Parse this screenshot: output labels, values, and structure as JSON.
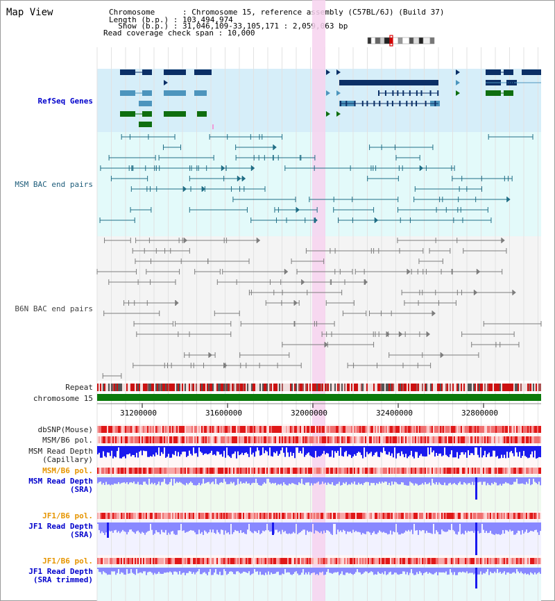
{
  "map": {
    "title": "Map View",
    "info_lines": [
      "Chromosome      : Chromosome 15, reference assembly (C57BL/6J) (Build 37)",
      "Length (b.p.) : 103,494,974",
      "  Show (b.p.) : 31,046,109-33,105,171 : 2,059,063 bp",
      "Read coverage check span : 10,000"
    ]
  },
  "tracks": {
    "refseq": "RefSeq Genes",
    "msm_bac": "MSM BAC end pairs",
    "b6n_bac": "B6N BAC end pairs",
    "repeat": "Repeat",
    "chromosome": "chromosome 15",
    "dbsnp": "dbSNP(Mouse)",
    "msm_b6_pol_1": "MSM/B6 pol.",
    "msm_depth_cap_1": "MSM Read Depth",
    "msm_depth_cap_2": "(Capillary)",
    "msm_b6_pol_2": "MSM/B6 pol.",
    "msm_depth_sra_1": "MSM Read Depth",
    "msm_depth_sra_2": "(SRA)",
    "jf1_b6_pol_1": "JF1/B6 pol.",
    "jf1_depth_sra_1": "JF1 Read Depth",
    "jf1_depth_sra_2": "(SRA)",
    "jf1_b6_pol_2": "JF1/B6 pol.",
    "jf1_depth_trim_1": "JF1 Read Depth",
    "jf1_depth_trim_2": "(SRA trimmed)"
  },
  "axis_ticks": [
    "31200000",
    "31600000",
    "32000000",
    "32400000",
    "32800000"
  ],
  "colors": {
    "refseq_bg": "#d6eef9",
    "msm_bg": "#e3fafa",
    "b6n_bg": "#f4f4f4",
    "highlight": "#f7d2ee",
    "chromosome": "#0c7a0c",
    "gene_dark": "#0b2f66",
    "gene_mid": "#4d95bd",
    "gene_green": "#0f6e0f",
    "msm_pair": "#1f6d85",
    "b6n_pair": "#7d7d7d",
    "depth_blue": "#1a1aee",
    "depth_light": "#8888ff"
  }
}
